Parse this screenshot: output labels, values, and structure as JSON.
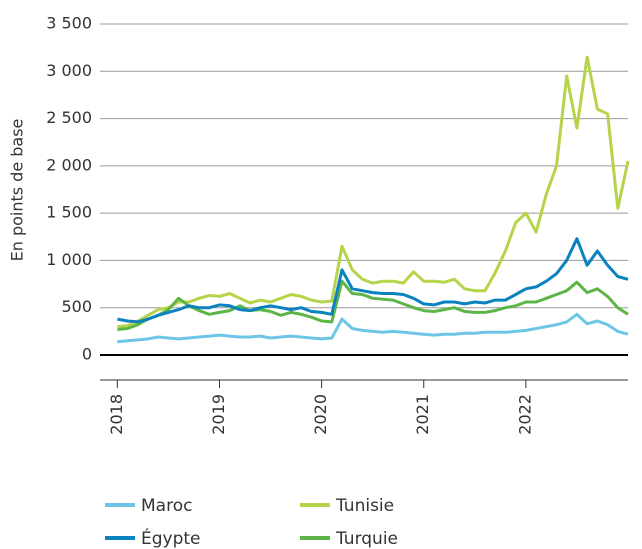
{
  "chart_data": {
    "type": "line",
    "y_label": "En points de base",
    "x": [
      2018.0,
      2018.1,
      2018.2,
      2018.3,
      2018.4,
      2018.5,
      2018.6,
      2018.7,
      2018.8,
      2018.9,
      2019.0,
      2019.1,
      2019.2,
      2019.3,
      2019.4,
      2019.5,
      2019.6,
      2019.7,
      2019.8,
      2019.9,
      2020.0,
      2020.1,
      2020.2,
      2020.3,
      2020.4,
      2020.5,
      2020.6,
      2020.7,
      2020.8,
      2020.9,
      2021.0,
      2021.1,
      2021.2,
      2021.3,
      2021.4,
      2021.5,
      2021.6,
      2021.7,
      2021.8,
      2021.9,
      2022.0,
      2022.1,
      2022.2,
      2022.3,
      2022.4,
      2022.5,
      2022.6,
      2022.7,
      2022.8,
      2022.9,
      2023.0
    ],
    "series": [
      {
        "name": "Maroc",
        "color": "#6ec6e6",
        "values": [
          140,
          150,
          160,
          170,
          190,
          180,
          170,
          180,
          190,
          200,
          210,
          200,
          190,
          190,
          200,
          180,
          190,
          200,
          190,
          180,
          170,
          180,
          380,
          280,
          260,
          250,
          240,
          250,
          240,
          230,
          220,
          210,
          220,
          220,
          230,
          230,
          240,
          240,
          240,
          250,
          260,
          280,
          300,
          320,
          350,
          430,
          330,
          360,
          320,
          250,
          220
        ]
      },
      {
        "name": "Égypte",
        "color": "#0a82c0",
        "values": [
          380,
          360,
          350,
          380,
          420,
          450,
          480,
          520,
          500,
          500,
          530,
          520,
          480,
          470,
          500,
          520,
          500,
          480,
          500,
          460,
          450,
          430,
          900,
          700,
          680,
          660,
          650,
          650,
          640,
          600,
          540,
          530,
          560,
          560,
          540,
          560,
          550,
          580,
          580,
          640,
          700,
          720,
          780,
          860,
          1000,
          1230,
          950,
          1100,
          950,
          830,
          800
        ]
      },
      {
        "name": "Tunisie",
        "color": "#b5d44a",
        "values": [
          300,
          310,
          360,
          420,
          480,
          500,
          560,
          560,
          600,
          630,
          620,
          650,
          600,
          550,
          580,
          560,
          600,
          640,
          620,
          580,
          560,
          570,
          1150,
          900,
          800,
          760,
          780,
          780,
          760,
          880,
          780,
          780,
          770,
          800,
          700,
          680,
          680,
          870,
          1100,
          1400,
          1500,
          1300,
          1700,
          2000,
          2950,
          2400,
          3150,
          2600,
          2550,
          1550,
          2050
        ]
      },
      {
        "name": "Turquie",
        "color": "#5db447",
        "values": [
          270,
          280,
          320,
          380,
          420,
          480,
          600,
          520,
          470,
          430,
          450,
          470,
          520,
          470,
          480,
          460,
          420,
          450,
          430,
          400,
          360,
          350,
          780,
          650,
          640,
          600,
          590,
          580,
          540,
          500,
          470,
          460,
          480,
          500,
          460,
          450,
          450,
          470,
          500,
          520,
          560,
          560,
          600,
          640,
          680,
          770,
          660,
          700,
          620,
          500,
          430
        ]
      }
    ],
    "xlim": [
      2017.83,
      2023.0
    ],
    "xticks": [
      2018,
      2019,
      2020,
      2021,
      2022
    ],
    "ylim": [
      0,
      3500
    ],
    "yticks": [
      0,
      500,
      {
        "value": 1000,
        "label": "1 000"
      },
      {
        "value": 1500,
        "label": "1 500"
      },
      {
        "value": 2000,
        "label": "2 000"
      },
      {
        "value": 2500,
        "label": "2 500"
      },
      {
        "value": 3000,
        "label": "3 000"
      },
      {
        "value": 3500,
        "label": "3 500"
      }
    ],
    "grid": true
  }
}
